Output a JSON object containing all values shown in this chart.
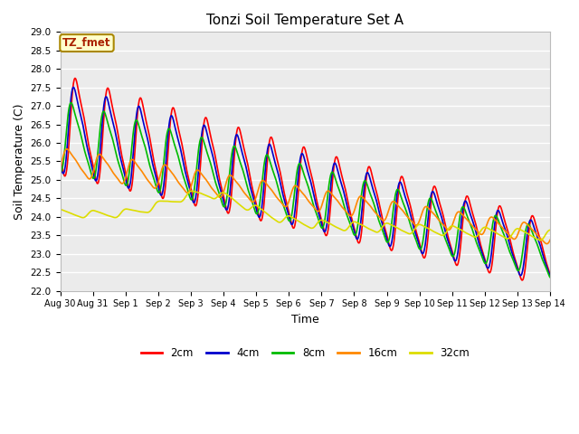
{
  "title": "Tonzi Soil Temperature Set A",
  "xlabel": "Time",
  "ylabel": "Soil Temperature (C)",
  "ylim": [
    22.0,
    29.0
  ],
  "yticks": [
    22.0,
    22.5,
    23.0,
    23.5,
    24.0,
    24.5,
    25.0,
    25.5,
    26.0,
    26.5,
    27.0,
    27.5,
    28.0,
    28.5,
    29.0
  ],
  "colors": {
    "2cm": "#FF0000",
    "4cm": "#0000CC",
    "8cm": "#00BB00",
    "16cm": "#FF8800",
    "32cm": "#DDDD00"
  },
  "legend_label": "TZ_fmet",
  "legend_box_facecolor": "#FFFFCC",
  "legend_box_edgecolor": "#AA8800",
  "fig_facecolor": "#FFFFFF",
  "plot_facecolor": "#EBEBEB",
  "grid_color": "#FFFFFF",
  "line_width": 1.2,
  "xtick_labels": [
    "Aug 30",
    "Aug 31",
    "Sep 1",
    "Sep 2",
    "Sep 3",
    "Sep 4",
    "Sep 5",
    "Sep 6",
    "Sep 7",
    "Sep 8",
    "Sep 9",
    "Sep 10",
    "Sep 11",
    "Sep 12",
    "Sep 13",
    "Sep 14"
  ]
}
